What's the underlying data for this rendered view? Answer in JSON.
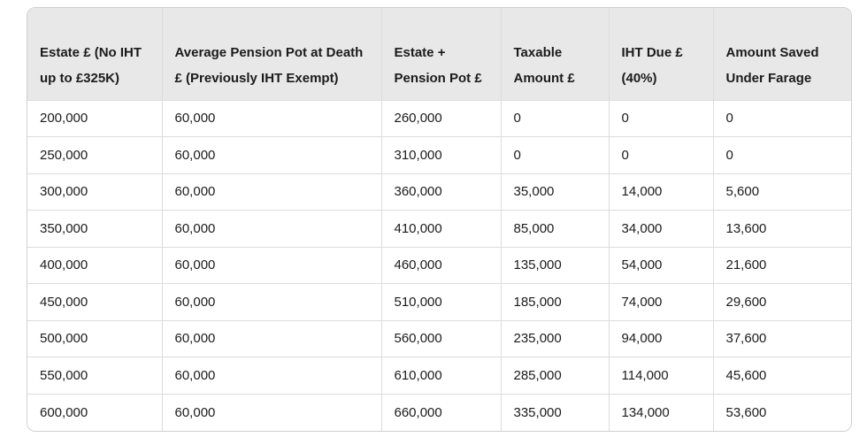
{
  "chart_data": {
    "type": "table",
    "title": "",
    "columns": [
      "Estate £ (No IHT up to £325K)",
      "Average Pension Pot at Death £ (Previously IHT Exempt)",
      "Estate + Pension Pot £",
      "Taxable Amount £",
      "IHT Due £ (40%)",
      "Amount Saved Under Farage"
    ],
    "rows": [
      [
        "200,000",
        "60,000",
        "260,000",
        "0",
        "0",
        "0"
      ],
      [
        "250,000",
        "60,000",
        "310,000",
        "0",
        "0",
        "0"
      ],
      [
        "300,000",
        "60,000",
        "360,000",
        "35,000",
        "14,000",
        "5,600"
      ],
      [
        "350,000",
        "60,000",
        "410,000",
        "85,000",
        "34,000",
        "13,600"
      ],
      [
        "400,000",
        "60,000",
        "460,000",
        "135,000",
        "54,000",
        "21,600"
      ],
      [
        "450,000",
        "60,000",
        "510,000",
        "185,000",
        "74,000",
        "29,600"
      ],
      [
        "500,000",
        "60,000",
        "560,000",
        "235,000",
        "94,000",
        "37,600"
      ],
      [
        "550,000",
        "60,000",
        "610,000",
        "285,000",
        "114,000",
        "45,600"
      ],
      [
        "600,000",
        "60,000",
        "660,000",
        "335,000",
        "134,000",
        "53,600"
      ]
    ]
  },
  "colors": {
    "header_bg": "#e8e8e8",
    "body_bg": "#ffffff",
    "border_outer": "#cfcfcf",
    "border_inner": "#dcdcdc",
    "text": "#1b1b1b"
  }
}
